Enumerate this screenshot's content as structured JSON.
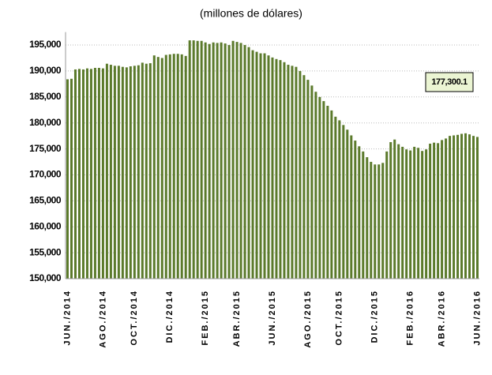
{
  "chart_data": {
    "type": "bar",
    "subtitle": "(millones de dólares)",
    "categories": [
      "JUN./2014",
      null,
      null,
      null,
      null,
      null,
      null,
      null,
      null,
      "AGO./2014",
      null,
      null,
      null,
      null,
      null,
      null,
      null,
      "OCT./2014",
      null,
      null,
      null,
      null,
      null,
      null,
      null,
      null,
      "DIC./2014",
      null,
      null,
      null,
      null,
      null,
      null,
      null,
      null,
      "FEB./2015",
      null,
      null,
      null,
      null,
      null,
      null,
      null,
      "ABR./2015",
      null,
      null,
      null,
      null,
      null,
      null,
      null,
      null,
      "JUN./2015",
      null,
      null,
      null,
      null,
      null,
      null,
      null,
      null,
      "AGO./2015",
      null,
      null,
      null,
      null,
      null,
      null,
      null,
      "OCT./2015",
      null,
      null,
      null,
      null,
      null,
      null,
      null,
      null,
      "DIC./2015",
      null,
      null,
      null,
      null,
      null,
      null,
      null,
      null,
      "FEB./2016",
      null,
      null,
      null,
      null,
      null,
      null,
      null,
      "ABR./2016",
      null,
      null,
      null,
      null,
      null,
      null,
      null,
      null,
      "JUN./2016"
    ],
    "values": [
      188400,
      188500,
      190300,
      190400,
      190300,
      190500,
      190400,
      190600,
      190600,
      190500,
      191400,
      191200,
      191000,
      191000,
      190800,
      190700,
      190900,
      191000,
      191100,
      191600,
      191400,
      191500,
      193000,
      192700,
      192500,
      193100,
      193200,
      193300,
      193300,
      193200,
      192900,
      195900,
      195900,
      195800,
      195800,
      195500,
      195200,
      195500,
      195400,
      195500,
      195300,
      195000,
      195800,
      195600,
      195400,
      195000,
      194600,
      194000,
      193700,
      193400,
      193400,
      193000,
      192600,
      192300,
      192100,
      191700,
      191200,
      191000,
      190800,
      190000,
      189200,
      188300,
      187200,
      186000,
      185000,
      184200,
      183300,
      182400,
      181200,
      180500,
      179600,
      178700,
      177600,
      176600,
      175500,
      174500,
      173400,
      172500,
      172000,
      172000,
      172300,
      174500,
      176300,
      176800,
      175900,
      175400,
      174900,
      174700,
      175400,
      175200,
      174600,
      174900,
      176000,
      176200,
      176100,
      176700,
      177000,
      177500,
      177600,
      177700,
      177900,
      178000,
      177800,
      177500,
      177300.1
    ],
    "value_labels": [
      null,
      null,
      null,
      null,
      null,
      null,
      null,
      null,
      null,
      null,
      null,
      null,
      null,
      null,
      null,
      null,
      null,
      null,
      null,
      null,
      null,
      null,
      null,
      null,
      null,
      null,
      null,
      null,
      null,
      null,
      null,
      null,
      null,
      null,
      null,
      null,
      null,
      null,
      null,
      null,
      null,
      null,
      null,
      null,
      null,
      null,
      null,
      null,
      null,
      null,
      null,
      null,
      null,
      null,
      null,
      null,
      null,
      null,
      null,
      null,
      null,
      null,
      null,
      null,
      null,
      null,
      null,
      null,
      null,
      null,
      null,
      null,
      null,
      null,
      null,
      null,
      null,
      null,
      null,
      null,
      null,
      null,
      null,
      null,
      null,
      null,
      null,
      null,
      null,
      null,
      null,
      null,
      null,
      null,
      null,
      null,
      null,
      null,
      null,
      null,
      null,
      null,
      null,
      null,
      "177,300.1"
    ],
    "color": "#5b7a2b",
    "ylim": [
      150000,
      197500
    ],
    "yticks": [
      {
        "value": 150000,
        "label": "150,000"
      },
      {
        "value": 155000,
        "label": "155,000"
      },
      {
        "value": 160000,
        "label": "160,000"
      },
      {
        "value": 165000,
        "label": "165,000"
      },
      {
        "value": 170000,
        "label": "170,000"
      },
      {
        "value": 175000,
        "label": "175,000"
      },
      {
        "value": 180000,
        "label": "180,000"
      },
      {
        "value": 185000,
        "label": "185,000"
      },
      {
        "value": 190000,
        "label": "190,000"
      },
      {
        "value": 195000,
        "label": "195,000"
      }
    ],
    "grid": true
  }
}
